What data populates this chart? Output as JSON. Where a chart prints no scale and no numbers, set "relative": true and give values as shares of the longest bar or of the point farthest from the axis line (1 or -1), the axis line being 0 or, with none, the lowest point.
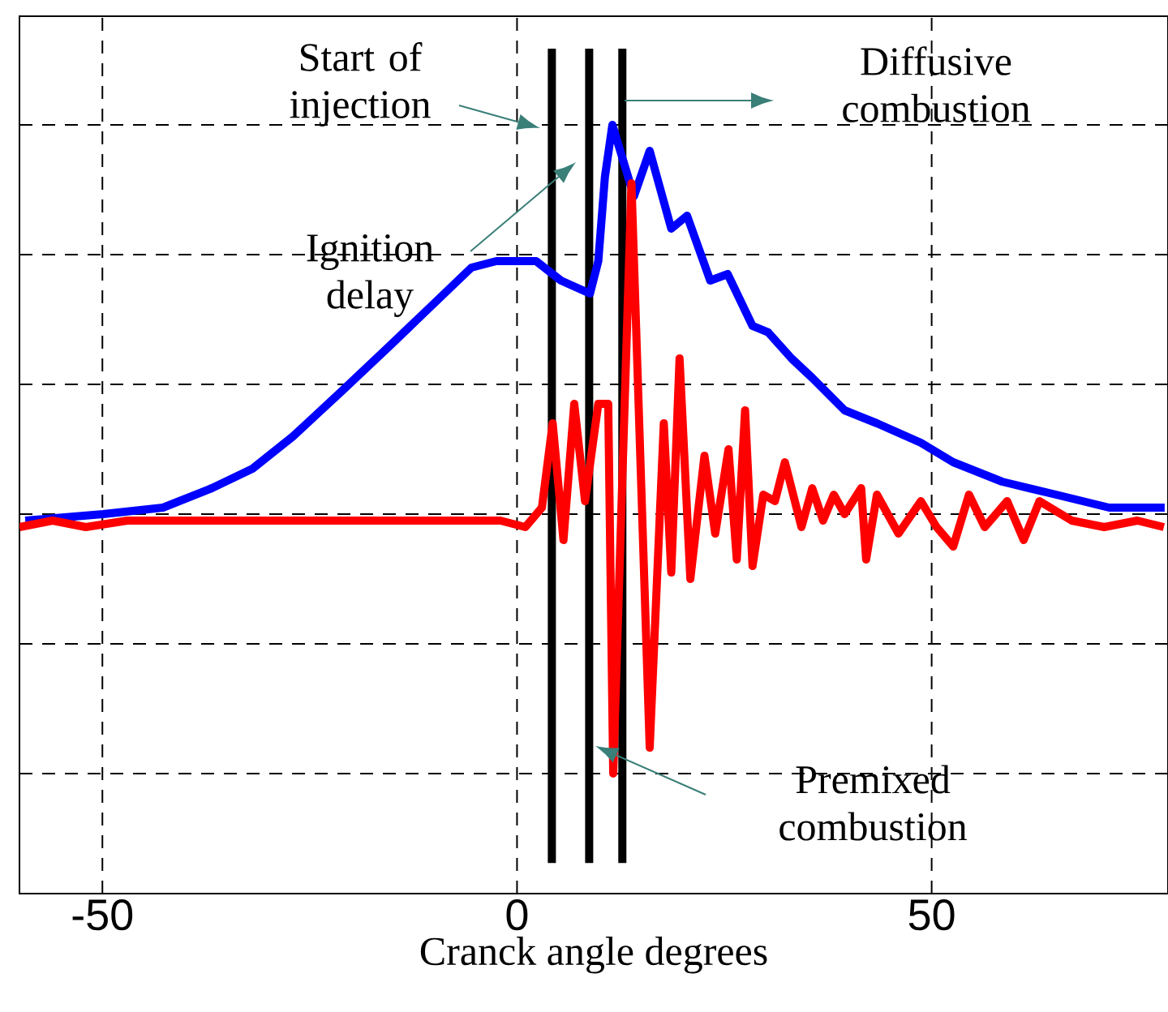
{
  "chart_data": {
    "type": "line",
    "xlabel": "Cranck angle degrees",
    "relative": true,
    "xlim": [
      -60,
      78.5
    ],
    "xticks": [
      -50,
      0,
      50
    ],
    "grid": true,
    "marker": "none",
    "series": [
      {
        "color": "#0000ff",
        "x": [
          -59.3,
          -49.9,
          -42.7,
          -36.8,
          -31.9,
          -27.0,
          -21.1,
          -15.3,
          -10.4,
          -5.5,
          -2.5,
          2.3,
          5.3,
          8.8,
          9.8,
          10.6,
          11.5,
          14.1,
          16.0,
          18.6,
          20.5,
          23.3,
          25.4,
          28.4,
          30.3,
          33.1,
          35.6,
          39.5,
          43.4,
          48.7,
          52.6,
          58.5,
          65.0,
          71.4,
          78.1
        ],
        "values": [
          0.39,
          0.4,
          0.41,
          0.44,
          0.47,
          0.52,
          0.59,
          0.66,
          0.72,
          0.78,
          0.79,
          0.79,
          0.76,
          0.74,
          0.79,
          0.92,
          1,
          0.89,
          0.96,
          0.84,
          0.86,
          0.76,
          0.77,
          0.69,
          0.68,
          0.64,
          0.61,
          0.56,
          0.54,
          0.51,
          0.48,
          0.45,
          0.43,
          0.41,
          0.41
        ]
      },
      {
        "color": "#ff0000",
        "x": [
          -60,
          -56,
          -52,
          -47,
          -40,
          -30,
          -20,
          -10,
          -2,
          1,
          3.0,
          4.3,
          5.6,
          6.9,
          8.2,
          9.8,
          11.0,
          11.6,
          13.8,
          16.0,
          17.7,
          18.6,
          19.6,
          20.9,
          22.6,
          23.9,
          25.5,
          26.5,
          27.5,
          28.4,
          29.7,
          31.1,
          32.3,
          34.3,
          35.6,
          36.9,
          38.2,
          39.5,
          41.5,
          42.1,
          43.4,
          46.0,
          48.7,
          50.6,
          52.6,
          54.5,
          56.4,
          59.1,
          61.1,
          63.0,
          66.9,
          70.8,
          74.8,
          78.0
        ],
        "values": [
          0.38,
          0.39,
          0.38,
          0.39,
          0.39,
          0.39,
          0.39,
          0.39,
          0.39,
          0.38,
          0.41,
          0.54,
          0.36,
          0.57,
          0.42,
          0.57,
          0.57,
          0.0,
          0.91,
          0.04,
          0.54,
          0.31,
          0.64,
          0.3,
          0.49,
          0.37,
          0.5,
          0.33,
          0.56,
          0.32,
          0.43,
          0.42,
          0.48,
          0.38,
          0.44,
          0.39,
          0.43,
          0.4,
          0.44,
          0.33,
          0.43,
          0.37,
          0.42,
          0.38,
          0.35,
          0.43,
          0.38,
          0.42,
          0.36,
          0.42,
          0.39,
          0.38,
          0.39,
          0.38
        ]
      }
    ],
    "ref_lines": [
      {
        "axis": "x",
        "value": 4.2,
        "color": "#000000"
      },
      {
        "axis": "x",
        "value": 8.7,
        "color": "#000000"
      },
      {
        "axis": "x",
        "value": 12.7,
        "color": "#000000"
      }
    ],
    "annotations": [
      "Start of injection",
      "Ignition delay",
      "Diffusive combustion",
      "Premixed combustion"
    ]
  }
}
